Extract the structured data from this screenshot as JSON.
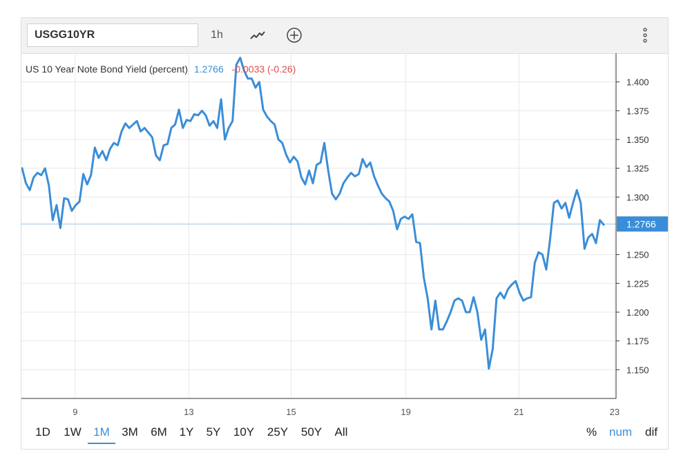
{
  "toolbar": {
    "symbol": "USGG10YR",
    "interval": "1h",
    "chart_type_icon": "line-chart-icon",
    "add_icon": "plus-circle-icon",
    "menu_icon": "vertical-dots-icon"
  },
  "legend": {
    "name": "US 10 Year Note Bond Yield (percent)",
    "last": "1.2766",
    "change": "-0.0033 (-0.26)",
    "last_color": "#3a8dd8",
    "change_color": "#e04a4a"
  },
  "price_tag": "1.2766",
  "ranges": [
    "1D",
    "1W",
    "1M",
    "3M",
    "6M",
    "1Y",
    "5Y",
    "10Y",
    "25Y",
    "50Y",
    "All"
  ],
  "active_range": "1M",
  "modes": [
    "%",
    "num",
    "dif"
  ],
  "active_mode": "num",
  "chart_data": {
    "type": "line",
    "title": "US 10 Year Note Bond Yield (percent)",
    "x_ticks": [
      "9",
      "13",
      "15",
      "19",
      "21",
      "23"
    ],
    "y_ticks": [
      "1.400",
      "1.375",
      "1.350",
      "1.325",
      "1.300",
      "1.2766",
      "1.250",
      "1.225",
      "1.200",
      "1.175",
      "1.150"
    ],
    "ylim": [
      1.125,
      1.425
    ],
    "last_value": 1.2766,
    "line_color": "#3a8dd8",
    "grid": true,
    "series": [
      {
        "values": [
          1.325,
          1.312,
          1.306,
          1.317,
          1.321,
          1.319,
          1.325,
          1.31,
          1.28,
          1.293,
          1.273,
          1.299,
          1.298,
          1.288,
          1.293,
          1.296,
          1.32,
          1.311,
          1.319,
          1.343,
          1.334,
          1.34,
          1.332,
          1.342,
          1.347,
          1.345,
          1.357,
          1.364,
          1.36,
          1.363,
          1.366,
          1.357,
          1.36,
          1.356,
          1.352,
          1.336,
          1.332,
          1.345,
          1.346,
          1.36,
          1.363,
          1.376,
          1.36,
          1.367,
          1.366,
          1.372,
          1.371,
          1.375,
          1.371,
          1.362,
          1.366,
          1.36,
          1.385,
          1.35,
          1.36,
          1.366,
          1.415,
          1.421,
          1.41,
          1.403,
          1.403,
          1.395,
          1.4,
          1.376,
          1.37,
          1.366,
          1.363,
          1.35,
          1.347,
          1.337,
          1.33,
          1.335,
          1.331,
          1.317,
          1.311,
          1.323,
          1.312,
          1.328,
          1.33,
          1.347,
          1.323,
          1.303,
          1.298,
          1.303,
          1.312,
          1.317,
          1.321,
          1.318,
          1.32,
          1.333,
          1.326,
          1.33,
          1.318,
          1.31,
          1.303,
          1.299,
          1.296,
          1.288,
          1.272,
          1.281,
          1.283,
          1.281,
          1.285,
          1.261,
          1.26,
          1.23,
          1.212,
          1.185,
          1.21,
          1.185,
          1.185,
          1.192,
          1.2,
          1.21,
          1.212,
          1.21,
          1.2,
          1.2,
          1.213,
          1.2,
          1.176,
          1.185,
          1.151,
          1.168,
          1.212,
          1.217,
          1.212,
          1.22,
          1.224,
          1.227,
          1.217,
          1.21,
          1.212,
          1.213,
          1.243,
          1.252,
          1.25,
          1.237,
          1.263,
          1.295,
          1.297,
          1.29,
          1.295,
          1.282,
          1.295,
          1.306,
          1.295,
          1.255,
          1.265,
          1.268,
          1.26,
          1.28,
          1.276
        ]
      }
    ]
  }
}
